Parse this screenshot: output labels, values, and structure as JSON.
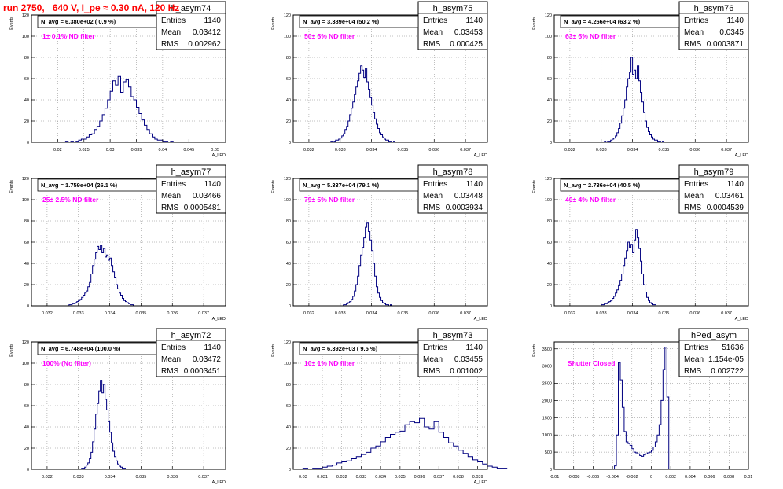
{
  "page_title": "run 2750,   640 V, I_pe ≈ 0.30 nA, 120 Hz",
  "colors": {
    "histogram": "#000080",
    "title": "#ff0000",
    "annotation": "#ff00ff",
    "frame": "#000000",
    "grid": "#808080"
  },
  "chart_data": [
    {
      "type": "histogram",
      "name": "h_asym74",
      "entries": "1140",
      "mean": "0.03412",
      "rms": "0.002962",
      "navg": "N_avg = 6.380e+02 ( 0.9 %)",
      "filter": "1± 0.1% ND filter",
      "ylabel": "Events",
      "xlabel": "A_LED",
      "xlim": [
        0.015,
        0.052
      ],
      "ylim": [
        0,
        120
      ],
      "xticks": [
        0.02,
        0.025,
        0.03,
        0.035,
        0.04,
        0.045,
        0.05
      ],
      "xtick_labels": [
        "0.02",
        "0.025",
        "0.03",
        "0.035",
        "0.04",
        "0.045",
        "0.05"
      ],
      "yticks": [
        0,
        20,
        40,
        60,
        80,
        100,
        120
      ],
      "grid": true
    },
    {
      "type": "histogram",
      "name": "h_asym75",
      "entries": "1140",
      "mean": "0.03453",
      "rms": "0.000425",
      "navg": "N_avg = 3.389e+04 (50.2 %)",
      "filter": "50± 5% ND filter",
      "ylabel": "Events",
      "xlabel": "A_LED",
      "xlim": [
        0.0315,
        0.0377
      ],
      "ylim": [
        0,
        120
      ],
      "xticks": [
        0.032,
        0.033,
        0.034,
        0.035,
        0.036,
        0.037
      ],
      "xtick_labels": [
        "0.032",
        "0.033",
        "0.034",
        "0.035",
        "0.036",
        "0.037"
      ],
      "yticks": [
        0,
        20,
        40,
        60,
        80,
        100,
        120
      ],
      "grid": true
    },
    {
      "type": "histogram",
      "name": "h_asym76",
      "entries": "1140",
      "mean": "0.0345",
      "rms": "0.0003871",
      "navg": "N_avg = 4.266e+04 (63.2 %)",
      "filter": "63± 5% ND filter",
      "ylabel": "Events",
      "xlabel": "A_LED",
      "xlim": [
        0.0315,
        0.0377
      ],
      "ylim": [
        0,
        120
      ],
      "xticks": [
        0.032,
        0.033,
        0.034,
        0.035,
        0.036,
        0.037
      ],
      "xtick_labels": [
        "0.032",
        "0.033",
        "0.034",
        "0.035",
        "0.036",
        "0.037"
      ],
      "yticks": [
        0,
        20,
        40,
        60,
        80,
        100,
        120
      ],
      "grid": true
    },
    {
      "type": "histogram",
      "name": "h_asym77",
      "entries": "1140",
      "mean": "0.03466",
      "rms": "0.0005481",
      "navg": "N_avg = 1.759e+04 (26.1 %)",
      "filter": "25± 2.5% ND filter",
      "ylabel": "Events",
      "xlabel": "A_LED",
      "xlim": [
        0.0315,
        0.0377
      ],
      "ylim": [
        0,
        120
      ],
      "xticks": [
        0.032,
        0.033,
        0.034,
        0.035,
        0.036,
        0.037
      ],
      "xtick_labels": [
        "0.032",
        "0.033",
        "0.034",
        "0.035",
        "0.036",
        "0.037"
      ],
      "yticks": [
        0,
        20,
        40,
        60,
        80,
        100,
        120
      ],
      "grid": true
    },
    {
      "type": "histogram",
      "name": "h_asym78",
      "entries": "1140",
      "mean": "0.03448",
      "rms": "0.0003934",
      "navg": "N_avg = 5.337e+04 (79.1 %)",
      "filter": "79± 5% ND filter",
      "ylabel": "Events",
      "xlabel": "A_LED",
      "xlim": [
        0.0315,
        0.0377
      ],
      "ylim": [
        0,
        120
      ],
      "xticks": [
        0.032,
        0.033,
        0.034,
        0.035,
        0.036,
        0.037
      ],
      "xtick_labels": [
        "0.032",
        "0.033",
        "0.034",
        "0.035",
        "0.036",
        "0.037"
      ],
      "yticks": [
        0,
        20,
        40,
        60,
        80,
        100,
        120
      ],
      "grid": true
    },
    {
      "type": "histogram",
      "name": "h_asym79",
      "entries": "1140",
      "mean": "0.03461",
      "rms": "0.0004539",
      "navg": "N_avg = 2.736e+04 (40.5 %)",
      "filter": "40± 4% ND filter",
      "ylabel": "Events",
      "xlabel": "A_LED",
      "xlim": [
        0.0315,
        0.0377
      ],
      "ylim": [
        0,
        120
      ],
      "xticks": [
        0.032,
        0.033,
        0.034,
        0.035,
        0.036,
        0.037
      ],
      "xtick_labels": [
        "0.032",
        "0.033",
        "0.034",
        "0.035",
        "0.036",
        "0.037"
      ],
      "yticks": [
        0,
        20,
        40,
        60,
        80,
        100,
        120
      ],
      "grid": true
    },
    {
      "type": "histogram",
      "name": "h_asym72",
      "entries": "1140",
      "mean": "0.03472",
      "rms": "0.0003451",
      "navg": "N_avg = 6.748e+04 (100.0 %)",
      "filter": "100% (No filter)",
      "ylabel": "Events",
      "xlabel": "A_LED",
      "xlim": [
        0.0315,
        0.0377
      ],
      "ylim": [
        0,
        120
      ],
      "xticks": [
        0.032,
        0.033,
        0.034,
        0.035,
        0.036,
        0.037
      ],
      "xtick_labels": [
        "0.032",
        "0.033",
        "0.034",
        "0.035",
        "0.036",
        "0.037"
      ],
      "yticks": [
        0,
        20,
        40,
        60,
        80,
        100,
        120
      ],
      "grid": true
    },
    {
      "type": "histogram",
      "name": "h_asym73",
      "entries": "1140",
      "mean": "0.03455",
      "rms": "0.001002",
      "navg": "N_avg = 6.392e+03 ( 9.5 %)",
      "filter": "10± 1% ND filter",
      "ylabel": "Events",
      "xlabel": "A_LED",
      "xlim": [
        0.0295,
        0.0395
      ],
      "ylim": [
        0,
        120
      ],
      "xticks": [
        0.03,
        0.031,
        0.032,
        0.033,
        0.034,
        0.035,
        0.036,
        0.037,
        0.038,
        0.039
      ],
      "xtick_labels": [
        "0.03",
        "0.031",
        "0.032",
        "0.033",
        "0.034",
        "0.035",
        "0.036",
        "0.037",
        "0.038",
        "0.039"
      ],
      "yticks": [
        0,
        20,
        40,
        60,
        80,
        100,
        120
      ],
      "grid": true
    },
    {
      "type": "histogram",
      "name": "hPed_asym",
      "entries": "51636",
      "mean": "1.154e-05",
      "rms": "0.002722",
      "navg": "",
      "filter": "Shutter Closed",
      "ylabel": "Events",
      "xlabel": "",
      "xlim": [
        -0.01,
        0.01
      ],
      "ylim": [
        0,
        3700
      ],
      "xticks": [
        -0.01,
        -0.008,
        -0.006,
        -0.004,
        -0.002,
        0,
        0.002,
        0.004,
        0.006,
        0.008,
        0.01
      ],
      "xtick_labels": [
        "-0.01",
        "-0.008",
        "-0.006",
        "-0.004",
        "-0.002",
        "0",
        "0.002",
        "0.004",
        "0.006",
        "0.008",
        "0.01"
      ],
      "yticks": [
        0,
        500,
        1000,
        1500,
        2000,
        2500,
        3000,
        3500
      ],
      "grid": true
    }
  ],
  "histograms": [
    {
      "x0": 0.0215,
      "dx": 0.0005,
      "counts": [
        1,
        0,
        1,
        0,
        1,
        2,
        3,
        3,
        5,
        7,
        8,
        12,
        15,
        20,
        26,
        32,
        40,
        48,
        58,
        54,
        62,
        47,
        57,
        59,
        52,
        43,
        40,
        33,
        27,
        21,
        16,
        12,
        8,
        5,
        3,
        2,
        2,
        1,
        1,
        0,
        1
      ]
    },
    {
      "x0": 0.0327,
      "dx": 5e-05,
      "counts": [
        1,
        0,
        1,
        2,
        2,
        3,
        4,
        6,
        8,
        12,
        15,
        20,
        26,
        32,
        38,
        45,
        52,
        58,
        65,
        72,
        68,
        61,
        70,
        57,
        50,
        42,
        35,
        28,
        22,
        17,
        13,
        9,
        7,
        5,
        3,
        2,
        2,
        1,
        1,
        0,
        1
      ]
    },
    {
      "x0": 0.0331,
      "dx": 5e-05,
      "counts": [
        1,
        0,
        1,
        1,
        2,
        3,
        4,
        6,
        9,
        13,
        18,
        25,
        32,
        40,
        52,
        60,
        66,
        80,
        64,
        68,
        60,
        72,
        58,
        47,
        38,
        28,
        20,
        14,
        10,
        7,
        5,
        3,
        2,
        2,
        1,
        1,
        0,
        1
      ]
    },
    {
      "x0": 0.0327,
      "dx": 5e-05,
      "counts": [
        1,
        1,
        2,
        2,
        3,
        4,
        5,
        6,
        8,
        10,
        12,
        14,
        18,
        22,
        30,
        38,
        44,
        50,
        56,
        53,
        57,
        50,
        54,
        46,
        48,
        43,
        45,
        38,
        32,
        27,
        20,
        16,
        12,
        10,
        7,
        5,
        4,
        3,
        2,
        1,
        1
      ]
    },
    {
      "x0": 0.0331,
      "dx": 5e-05,
      "counts": [
        1,
        1,
        2,
        3,
        4,
        6,
        9,
        14,
        20,
        28,
        38,
        48,
        55,
        64,
        74,
        78,
        70,
        62,
        52,
        40,
        28,
        18,
        12,
        8,
        5,
        3,
        2,
        1,
        1,
        0,
        1
      ]
    },
    {
      "x0": 0.033,
      "dx": 5e-05,
      "counts": [
        1,
        1,
        2,
        2,
        3,
        4,
        5,
        7,
        9,
        12,
        15,
        19,
        24,
        30,
        38,
        45,
        52,
        60,
        55,
        58,
        50,
        62,
        72,
        64,
        54,
        42,
        30,
        20,
        13,
        8,
        5,
        3,
        2,
        1,
        1
      ]
    },
    {
      "x0": 0.0331,
      "dx": 5e-05,
      "counts": [
        1,
        1,
        2,
        4,
        6,
        10,
        16,
        26,
        38,
        52,
        62,
        74,
        84,
        72,
        80,
        66,
        56,
        45,
        35,
        25,
        17,
        12,
        8,
        5,
        3,
        2,
        1,
        1
      ]
    },
    {
      "x0": 0.03,
      "dx": 0.00025,
      "counts": [
        1,
        0,
        1,
        1,
        2,
        3,
        4,
        6,
        7,
        8,
        10,
        12,
        14,
        16,
        20,
        22,
        26,
        30,
        33,
        35,
        36,
        42,
        45,
        44,
        48,
        40,
        38,
        45,
        35,
        30,
        25,
        22,
        18,
        15,
        12,
        9,
        7,
        5,
        3,
        2,
        1,
        1
      ]
    },
    {
      "x0": -0.0052,
      "dx": 0.0002,
      "counts": [
        0,
        0,
        0,
        0,
        0,
        0,
        0,
        100,
        1000,
        3100,
        2600,
        1800,
        1100,
        800,
        750,
        700,
        600,
        500,
        480,
        450,
        400,
        380,
        420,
        450,
        480,
        500,
        550,
        650,
        800,
        1000,
        1300,
        2000,
        2900,
        3550,
        2100,
        0
      ]
    }
  ]
}
